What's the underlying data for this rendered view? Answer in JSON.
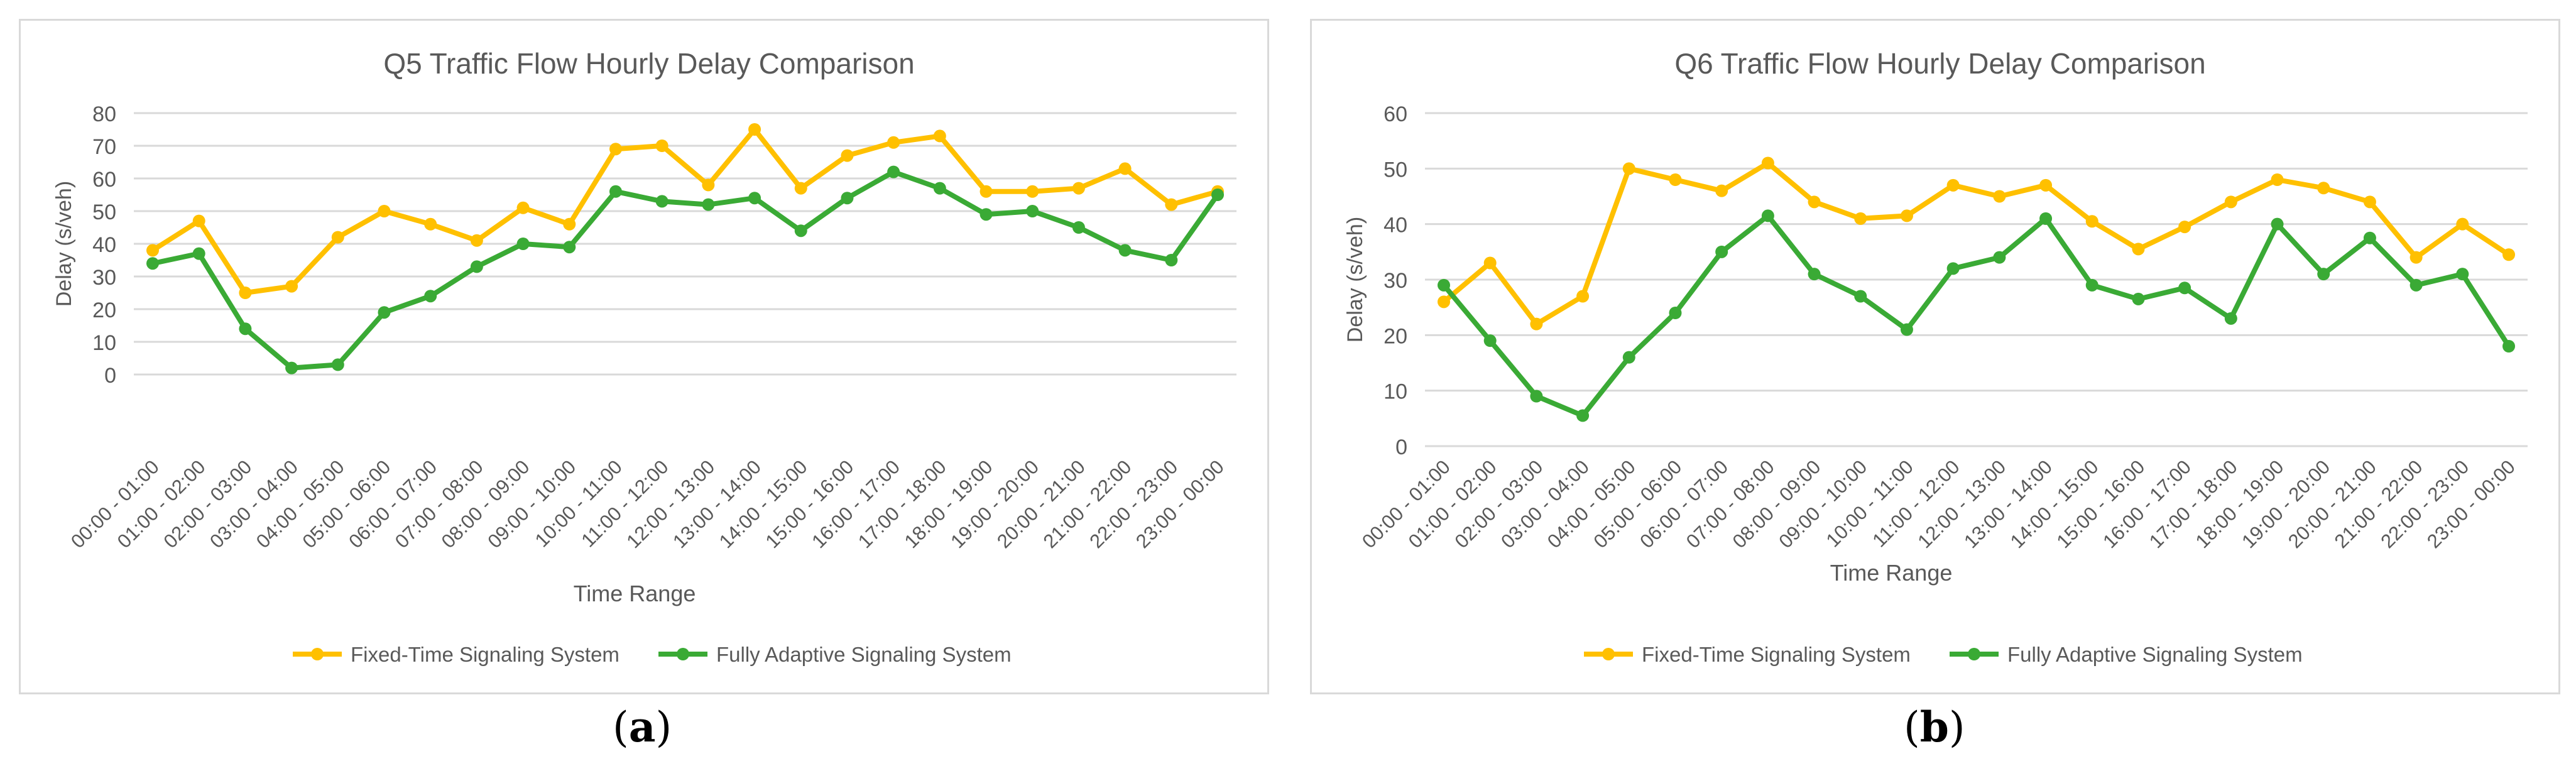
{
  "colors": {
    "fixed": "#FFC000",
    "adaptive": "#3AAA35",
    "grid": "#d9d9d9",
    "text": "#595959"
  },
  "captions": {
    "a_open": "(",
    "a_letter": "a",
    "a_close": ")",
    "b_open": "(",
    "b_letter": "b",
    "b_close": ")"
  },
  "chart_data": [
    {
      "type": "line",
      "title": "Q5 Traffic Flow Hourly Delay Comparison",
      "xlabel": "Time Range",
      "ylabel": "Delay (s/veh)",
      "ylim": [
        0,
        80
      ],
      "yticks": [
        0,
        10,
        20,
        30,
        40,
        50,
        60,
        70,
        80
      ],
      "grid": true,
      "legend_position": "bottom",
      "categories": [
        "00:00 - 01:00",
        "01:00 - 02:00",
        "02:00 - 03:00",
        "03:00 - 04:00",
        "04:00 - 05:00",
        "05:00 - 06:00",
        "06:00 - 07:00",
        "07:00 - 08:00",
        "08:00 - 09:00",
        "09:00 - 10:00",
        "10:00 - 11:00",
        "11:00 - 12:00",
        "12:00 - 13:00",
        "13:00 - 14:00",
        "14:00 - 15:00",
        "15:00 - 16:00",
        "16:00 - 17:00",
        "17:00 - 18:00",
        "18:00 - 19:00",
        "19:00 - 20:00",
        "20:00 - 21:00",
        "21:00 - 22:00",
        "22:00 - 23:00",
        "23:00 - 00:00"
      ],
      "series": [
        {
          "name": "Fixed-Time Signaling System",
          "color": "#FFC000",
          "values": [
            38,
            47,
            25,
            27,
            42,
            50,
            46,
            41,
            51,
            46,
            69,
            70,
            58,
            75,
            57,
            67,
            71,
            73,
            56,
            56,
            57,
            63,
            52,
            56
          ]
        },
        {
          "name": "Fully Adaptive Signaling System",
          "color": "#3AAA35",
          "values": [
            34,
            37,
            14,
            2,
            3,
            19,
            24,
            33,
            40,
            39,
            56,
            53,
            52,
            54,
            44,
            54,
            62,
            57,
            49,
            50,
            45,
            38,
            35,
            55
          ]
        }
      ]
    },
    {
      "type": "line",
      "title": "Q6 Traffic Flow Hourly Delay Comparison",
      "xlabel": "Time Range",
      "ylabel": "Delay (s/veh)",
      "ylim": [
        0,
        60
      ],
      "yticks": [
        0,
        10,
        20,
        30,
        40,
        50,
        60
      ],
      "grid": true,
      "legend_position": "bottom",
      "categories": [
        "00:00 - 01:00",
        "01:00 - 02:00",
        "02:00 - 03:00",
        "03:00 - 04:00",
        "04:00 - 05:00",
        "05:00 - 06:00",
        "06:00 - 07:00",
        "07:00 - 08:00",
        "08:00 - 09:00",
        "09:00 - 10:00",
        "10:00 - 11:00",
        "11:00 - 12:00",
        "12:00 - 13:00",
        "13:00 - 14:00",
        "14:00 - 15:00",
        "15:00 - 16:00",
        "16:00 - 17:00",
        "17:00 - 18:00",
        "18:00 - 19:00",
        "19:00 - 20:00",
        "20:00 - 21:00",
        "21:00 - 22:00",
        "22:00 - 23:00",
        "23:00 - 00:00"
      ],
      "series": [
        {
          "name": "Fixed-Time Signaling System",
          "color": "#FFC000",
          "values": [
            26,
            33,
            22,
            27,
            50,
            48,
            46,
            51,
            44,
            41,
            41.5,
            47,
            45,
            47,
            40.5,
            35.5,
            39.5,
            44,
            48,
            46.5,
            44,
            34,
            40,
            34.5
          ]
        },
        {
          "name": "Fully Adaptive Signaling System",
          "color": "#3AAA35",
          "values": [
            29,
            19,
            9,
            5.5,
            16,
            24,
            35,
            41.5,
            31,
            27,
            21,
            32,
            34,
            41,
            29,
            26.5,
            28.5,
            23,
            40,
            31,
            37.5,
            29,
            31,
            18
          ]
        }
      ]
    }
  ]
}
